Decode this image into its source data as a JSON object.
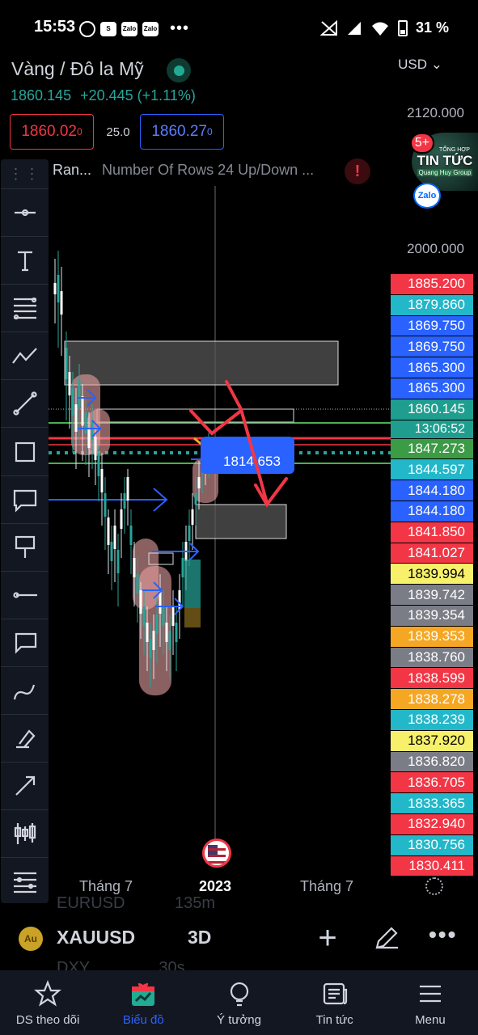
{
  "status_bar": {
    "time": "15:53",
    "battery": "31 %",
    "app_icons": [
      "alarm-icon",
      "shopee-icon",
      "zalo-icon",
      "zalo-icon"
    ],
    "zalo_label": "Zalo",
    "shop_label": "S",
    "more": "•••"
  },
  "header": {
    "symbol_title": "Vàng / Đô la Mỹ",
    "price": "1860.145",
    "change": "+20.445 (+1.11%)",
    "currency": "USD",
    "currency_arrow": "⌄"
  },
  "trade": {
    "sell_price_main": "1860.02",
    "sell_price_sup": "0",
    "spread": "25.0",
    "buy_price_main": "1860.27",
    "buy_price_sup": "0"
  },
  "indicator": {
    "name": "Ran...",
    "params": "Number Of Rows 24 Up/Down ...",
    "warning": "!"
  },
  "price_axis": [
    {
      "label": "2120.000",
      "top": 130
    },
    {
      "label": "2000.000",
      "top": 298
    }
  ],
  "zalo_bubble": {
    "badge": "5+",
    "top_text": "TỔNG HỢP",
    "main_text": "TIN TỨC",
    "sub_text": "Quang Huy Group",
    "logo": "Zalo"
  },
  "price_badges": [
    {
      "value": "1885.200",
      "color": "#f23645"
    },
    {
      "value": "1879.860",
      "color": "#22b7c9"
    },
    {
      "value": "1869.750",
      "color": "#2962ff"
    },
    {
      "value": "1869.750",
      "color": "#2962ff"
    },
    {
      "value": "1865.300",
      "color": "#2962ff"
    },
    {
      "value": "1865.300",
      "color": "#2962ff"
    },
    {
      "value": "1860.145",
      "color": "#1f9e8f"
    },
    {
      "value": "13:06:52",
      "color": "#1f9e8f",
      "time": true
    },
    {
      "value": "1847.273",
      "color": "#3c9b45"
    },
    {
      "value": "1844.597",
      "color": "#22b7c9"
    },
    {
      "value": "1844.180",
      "color": "#2962ff"
    },
    {
      "value": "1844.180",
      "color": "#2962ff"
    },
    {
      "value": "1841.850",
      "color": "#f23645"
    },
    {
      "value": "1841.027",
      "color": "#f23645"
    },
    {
      "value": "1839.994",
      "color": "#f7f06b",
      "dark": true
    },
    {
      "value": "1839.742",
      "color": "#7a7d86"
    },
    {
      "value": "1839.354",
      "color": "#7a7d86"
    },
    {
      "value": "1839.353",
      "color": "#f5a623"
    },
    {
      "value": "1838.760",
      "color": "#7a7d86"
    },
    {
      "value": "1838.599",
      "color": "#f23645"
    },
    {
      "value": "1838.278",
      "color": "#f5a623"
    },
    {
      "value": "1838.239",
      "color": "#22b7c9"
    },
    {
      "value": "1837.920",
      "color": "#f7f06b",
      "dark": true
    },
    {
      "value": "1836.820",
      "color": "#7a7d86"
    },
    {
      "value": "1836.705",
      "color": "#f23645"
    },
    {
      "value": "1833.365",
      "color": "#22b7c9"
    },
    {
      "value": "1832.940",
      "color": "#f23645"
    },
    {
      "value": "1830.756",
      "color": "#22b7c9"
    },
    {
      "value": "1830.411",
      "color": "#f23645"
    }
  ],
  "chart": {
    "position_label": "1814.653",
    "position_marker": "$"
  },
  "toolbar": {
    "handle": "⋮⋮",
    "tools": [
      "crosshair-tool",
      "text-tool",
      "fib-tool",
      "pattern-tool",
      "trendline-tool",
      "rectangle-tool",
      "comment-tool",
      "signpost-tool",
      "horizontal-ray-tool",
      "callout-tool",
      "brush-tool",
      "highlighter-tool",
      "arrow-tool",
      "candles-tool",
      "settings-lines-tool"
    ]
  },
  "time_axis": {
    "labels": [
      "Tháng 7",
      "2023",
      "Tháng 7"
    ]
  },
  "ghost_watchlist": [
    {
      "symbol": "EURUSD",
      "value": "135m"
    },
    {
      "symbol": "DXY",
      "value": "30s"
    }
  ],
  "symbol_bar": {
    "symbol": "XAUUSD",
    "interval": "3D",
    "add": "+",
    "more": "•••"
  },
  "bottom_nav": [
    {
      "label": "DS theo dõi",
      "icon": "star-icon",
      "active": false
    },
    {
      "label": "Biểu đồ",
      "icon": "chart-gift-icon",
      "active": true
    },
    {
      "label": "Ý tưởng",
      "icon": "lightbulb-icon",
      "active": false
    },
    {
      "label": "Tin tức",
      "icon": "news-icon",
      "active": false
    },
    {
      "label": "Menu",
      "icon": "menu-icon",
      "active": false
    }
  ]
}
